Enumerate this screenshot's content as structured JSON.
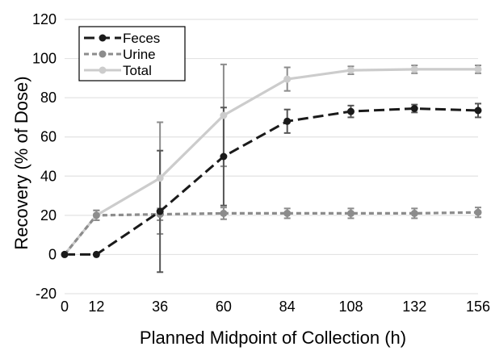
{
  "chart_data": {
    "type": "line",
    "title": "",
    "xlabel": "Planned Midpoint of Collection (h)",
    "ylabel": "Recovery (% of Dose)",
    "x": [
      0,
      12,
      36,
      60,
      84,
      108,
      132,
      156
    ],
    "xticks": [
      "0",
      "12",
      "36",
      "60",
      "84",
      "108",
      "132",
      "156"
    ],
    "yticks": [
      "-20",
      "0",
      "20",
      "40",
      "60",
      "80",
      "100",
      "120"
    ],
    "xlim": [
      0,
      156
    ],
    "ylim": [
      -20,
      120
    ],
    "grid": "horizontal",
    "legend_position": "top-left",
    "series": [
      {
        "name": "Feces",
        "color": "#1a1a1a",
        "dash": "long-dash",
        "values": [
          0,
          0,
          22,
          50,
          68,
          73,
          74.5,
          73.5
        ],
        "errors": [
          0,
          0,
          31,
          25,
          6,
          3,
          2,
          3.5
        ]
      },
      {
        "name": "Urine",
        "color": "#8c8c8c",
        "dash": "short-dash",
        "values": [
          0,
          20,
          20.5,
          21,
          21,
          21,
          21,
          21.5
        ],
        "errors": [
          0,
          2.5,
          3,
          3,
          2.5,
          2.5,
          2.5,
          2.5
        ]
      },
      {
        "name": "Total",
        "color": "#cccccc",
        "dash": "solid",
        "values": [
          0,
          20,
          39,
          71,
          89.5,
          94,
          94.5,
          94.5
        ],
        "errors": [
          0,
          2.5,
          28.5,
          26,
          6,
          2,
          2,
          2
        ]
      }
    ]
  }
}
